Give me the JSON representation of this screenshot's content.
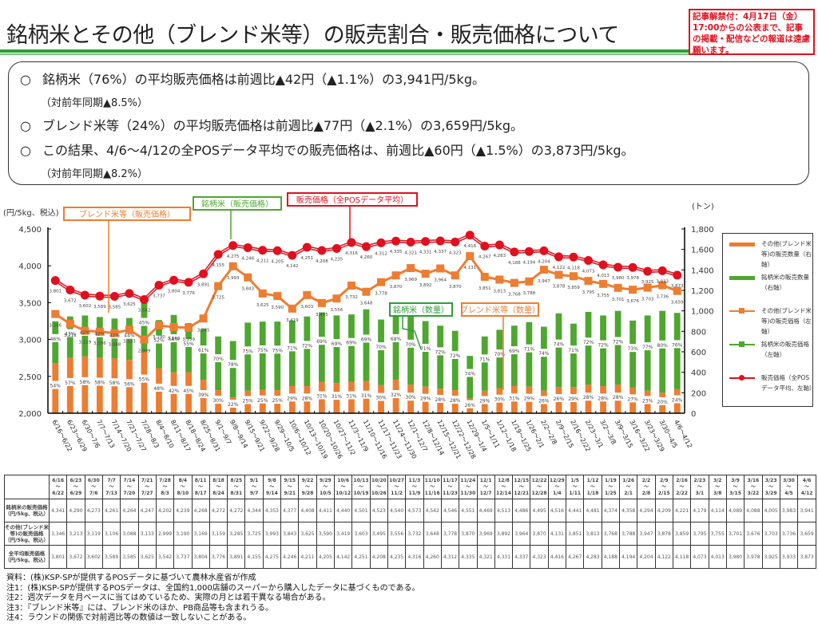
{
  "header": {
    "title": "銘柄米とその他（ブレンド米等）の販売割合・販売価格について",
    "embargo_text": "記事解禁付：4月17日（金）17:00からの公表まで、記事の掲載・配信などの報道は遠慮願います。",
    "colors": {
      "stripe_green": "#2e9e3a",
      "embargo_red": "#e0101e"
    }
  },
  "summary": {
    "bullet": "○",
    "lines": [
      {
        "text": "銘柄米（76%）の平均販売価格は前週比▲42円（▲1.1%）の3,941円/5kg。",
        "sub": "（対前年同期▲8.5%）"
      },
      {
        "text": "ブレンド米等（24%）の平均販売価格は前週比▲77円（▲2.1%）の3,659円/5kg。",
        "sub": ""
      },
      {
        "text": "この結果、4/6～4/12の全POSデータ平均での販売価格は、前週比▲60円（▲1.5%）の3,873円/5kg。",
        "sub": "（対前年同期▲8.2%）"
      }
    ]
  },
  "chart_data": {
    "type": "bar+line",
    "left_axis_label": "(円/5kg、税込)",
    "right_axis_label": "(トン)",
    "ylim_left": [
      2000,
      4500
    ],
    "yticks_left": [
      "2,000",
      "2,500",
      "3,000",
      "3,500",
      "4,000",
      "4,500"
    ],
    "ylim_right": [
      0,
      1800
    ],
    "yticks_right": [
      "0",
      "200",
      "400",
      "600",
      "800",
      "1,000",
      "1,200",
      "1,400",
      "1,600",
      "1,800"
    ],
    "categories": [
      "6/16～6/22",
      "6/23～6/29",
      "6/30～7/6",
      "7/7～7/13",
      "7/14～7/20",
      "7/21～7/27",
      "7/28～8/3",
      "8/4～8/10",
      "8/11～8/17",
      "8/18～8/24",
      "8/25～8/31",
      "9/1～9/7",
      "9/8～9/14",
      "9/15～9/21",
      "9/22～9/28",
      "9/29～10/5",
      "10/6～10/12",
      "10/13～10/19",
      "10/20～10/26",
      "10/27～11/2",
      "11/3～11/9",
      "11/10～11/16",
      "11/17～11/23",
      "11/24～11/30",
      "12/1～12/7",
      "12/8～12/14",
      "12/15～12/21",
      "12/22～12/28",
      "12/29～1/4",
      "1/5～1/11",
      "1/12～1/18",
      "1/19～1/25",
      "1/26～2/1",
      "2/2～2/8",
      "2/9～2/15",
      "2/16～2/22",
      "2/23～3/1",
      "3/2～3/8",
      "3/9～3/15",
      "3/16～3/22",
      "3/23～3/29",
      "3/30～4/5",
      "4/6～4/12"
    ],
    "table_headers_top": [
      "6/16",
      "6/23",
      "6/30",
      "7/7",
      "7/14",
      "7/21",
      "7/28",
      "8/4",
      "8/11",
      "8/18",
      "8/25",
      "9/1",
      "9/8",
      "9/15",
      "9/22",
      "9/29",
      "10/6",
      "10/13",
      "10/20",
      "10/27",
      "11/3",
      "11/10",
      "11/17",
      "11/24",
      "12/1",
      "12/8",
      "12/15",
      "12/22",
      "12/29",
      "1/5",
      "1/12",
      "1/19",
      "1/26",
      "2/2",
      "2/9",
      "2/16",
      "2/23",
      "3/2",
      "3/9",
      "3/16",
      "3/23",
      "3/30",
      "4/6"
    ],
    "table_headers_bottom": [
      "6/22",
      "6/29",
      "7/6",
      "7/13",
      "7/20",
      "7/27",
      "8/3",
      "8/10",
      "8/17",
      "8/24",
      "8/31",
      "9/7",
      "9/14",
      "9/21",
      "9/28",
      "10/5",
      "10/12",
      "10/19",
      "10/26",
      "11/2",
      "11/9",
      "11/16",
      "11/23",
      "11/30",
      "12/7",
      "12/14",
      "12/21",
      "12/28",
      "1/4",
      "1/11",
      "1/18",
      "1/25",
      "2/1",
      "2/8",
      "2/15",
      "2/22",
      "3/1",
      "3/8",
      "3/15",
      "3/22",
      "3/29",
      "4/5",
      "4/12"
    ],
    "series": [
      {
        "name": "その他(ブレンド米等)の販売数量（右軸）",
        "type": "bar",
        "axis": "right",
        "color": "#ed7d31",
        "share_labels": [
          "54%",
          "57%",
          "58%",
          "58%",
          "58%",
          "56%",
          "55%",
          "48%",
          "42%",
          "45%",
          "39%",
          "30%",
          "22%",
          "25%",
          "25%",
          "25%",
          "29%",
          "28%",
          "31%",
          "31%",
          "31%",
          "31%",
          "30%",
          "32%",
          "30%",
          "29%",
          "28%",
          "28%",
          "26%",
          "29%",
          "30%",
          "31%",
          "29%",
          "26%",
          "26%",
          "29%",
          "28%",
          "28%",
          "28%",
          "27%",
          "23%",
          "20%",
          "24%"
        ],
        "values": [
          488,
          540,
          555,
          545,
          535,
          520,
          600,
          440,
          400,
          400,
          325,
          225,
          155,
          220,
          230,
          225,
          265,
          265,
          305,
          295,
          305,
          315,
          275,
          325,
          280,
          260,
          240,
          225,
          145,
          220,
          245,
          265,
          260,
          220,
          255,
          255,
          280,
          265,
          280,
          250,
          220,
          200,
          235
        ]
      },
      {
        "name": "銘柄米の販売数量（右軸）",
        "type": "bar",
        "axis": "right",
        "color": "#4ea72e",
        "share_labels": [
          "46%",
          "43%",
          "42%",
          "42%",
          "42%",
          "44%",
          "45%",
          "52%",
          "58%",
          "55%",
          "61%",
          "70%",
          "78%",
          "75%",
          "75%",
          "75%",
          "71%",
          "72%",
          "69%",
          "69%",
          "69%",
          "69%",
          "70%",
          "68%",
          "70%",
          "71%",
          "72%",
          "72%",
          "74%",
          "71%",
          "70%",
          "69%",
          "71%",
          "74%",
          "74%",
          "71%",
          "72%",
          "72%",
          "72%",
          "73%",
          "77%",
          "80%",
          "76%"
        ],
        "values": [
          410,
          405,
          400,
          395,
          390,
          410,
          490,
          470,
          560,
          480,
          500,
          525,
          550,
          665,
          665,
          670,
          640,
          680,
          680,
          660,
          660,
          700,
          640,
          690,
          675,
          640,
          615,
          580,
          415,
          530,
          570,
          590,
          630,
          625,
          720,
          620,
          710,
          690,
          720,
          655,
          735,
          800,
          745
        ]
      },
      {
        "name": "その他(ブレンド米等)の販売価格（左軸）",
        "type": "line",
        "axis": "left",
        "color": "#ed7d31",
        "values": [
          3346,
          3213,
          3119,
          3106,
          3088,
          3133,
          2999,
          3190,
          3169,
          3159,
          3285,
          3725,
          3993,
          3843,
          3625,
          3590,
          3419,
          3603,
          3495,
          3556,
          3732,
          3648,
          3778,
          3870,
          3969,
          3892,
          3964,
          3870,
          4131,
          3851,
          3813,
          3768,
          3788,
          3947,
          3878,
          3859,
          3795,
          3755,
          3701,
          3676,
          3703,
          3736,
          3659
        ],
        "labels": [
          "3,346",
          "3,213",
          "3,119",
          "3,106",
          "3,088",
          "3,133",
          "2,999",
          "3,190",
          "3,169",
          "3,159",
          "3,285",
          "3,725",
          "3,993",
          "3,843",
          "3,625",
          "3,590",
          "3,419",
          "3,603",
          "3,495",
          "3,556",
          "3,732",
          "3,648",
          "3,778",
          "3,870",
          "3,969",
          "3,892",
          "3,964",
          "3,870",
          "4,131",
          "3,851",
          "3,813",
          "3,768",
          "3,788",
          "3,947",
          "3,878",
          "3,859",
          "3,795",
          "3,755",
          "3,701",
          "3,676",
          "3,703",
          "3,736",
          "3,659"
        ]
      },
      {
        "name": "銘柄米の販売価格（左軸）",
        "type": "line",
        "axis": "left",
        "color": "#4ea72e",
        "values": [
          4341,
          4290,
          4273,
          4261,
          4264,
          4247,
          4202,
          4239,
          4268,
          4272,
          4272,
          4344,
          4353,
          4377,
          4408,
          4411,
          4440,
          4501,
          4523,
          4540,
          4573,
          4542,
          4546,
          4551,
          4469,
          4513,
          4486,
          4495,
          4516,
          4441,
          4481,
          4374,
          4358,
          4294,
          4209,
          4221,
          4179,
          4114,
          4089,
          4088,
          4005,
          3983,
          3941
        ],
        "labels": [
          "4,341",
          "4,290",
          "4,273",
          "4,261",
          "4,264",
          "4,247",
          "4,202",
          "4,239",
          "4,268",
          "4,272",
          "4,272",
          "4,344",
          "4,353",
          "4,377",
          "4,408",
          "4,411",
          "4,440",
          "4,501",
          "4,523",
          "4,540",
          "4,573",
          "4,542",
          "4,546",
          "4,551",
          "4,469",
          "4,513",
          "4,486",
          "4,495",
          "4,516",
          "4,441",
          "4,481",
          "4,374",
          "4,358",
          "4,294",
          "4,209",
          "4,221",
          "4,179",
          "4,114",
          "4,089",
          "4,088",
          "4,005",
          "3,983",
          "3,941"
        ]
      },
      {
        "name": "販売価格（全POSデータ平均、左軸）",
        "type": "line",
        "axis": "left",
        "color": "#e0101e",
        "values": [
          3801,
          3672,
          3602,
          3589,
          3585,
          3625,
          3542,
          3737,
          3804,
          3776,
          3891,
          4155,
          4275,
          4246,
          4211,
          4205,
          4142,
          4251,
          4208,
          4235,
          4316,
          4260,
          4312,
          4335,
          4321,
          4331,
          4337,
          4323,
          4416,
          4267,
          4283,
          4188,
          4194,
          4204,
          4122,
          4118,
          4073,
          4013,
          3980,
          3978,
          3925,
          3933,
          3873
        ],
        "labels": [
          "3,801",
          "3,672",
          "3,602",
          "3,589",
          "3,585",
          "3,625",
          "3,542",
          "3,737",
          "3,804",
          "3,776",
          "3,891",
          "4,155",
          "4,275",
          "4,246",
          "4,211",
          "4,205",
          "4,142",
          "4,251",
          "4,208",
          "4,235",
          "4,316",
          "4,260",
          "4,312",
          "4,335",
          "4,321",
          "4,331",
          "4,337",
          "4,323",
          "4,416",
          "4,267",
          "4,283",
          "4,188",
          "4,194",
          "4,204",
          "4,122",
          "4,118",
          "4,073",
          "4,013",
          "3,980",
          "3,978",
          "3,925",
          "3,933",
          "3,873"
        ]
      }
    ],
    "callouts": [
      {
        "text": "ブレンド米等（販売価格）",
        "color": "#ed7d31"
      },
      {
        "text": "銘柄米（販売価格）",
        "color": "#4ea72e"
      },
      {
        "text": "販売価格（全POSデータ平均）",
        "color": "#e0101e"
      },
      {
        "text": "銘柄米（数量）",
        "color": "#2e9e3a"
      },
      {
        "text": "ブレンド米等（数量）",
        "color": "#ed7d31"
      }
    ],
    "legend": {
      "position": "right",
      "items": [
        {
          "text": "その他(ブレンド米等)の販売数量（右軸）",
          "kind": "bar",
          "color": "#ed7d31"
        },
        {
          "text": "銘柄米の販売数量（右軸）",
          "kind": "bar",
          "color": "#4ea72e"
        },
        {
          "text": "その他(ブレンド米等)の販売価格（左軸）",
          "kind": "line-square",
          "color": "#ed7d31"
        },
        {
          "text": "銘柄米の販売価格（左軸）",
          "kind": "line-square",
          "color": "#4ea72e"
        },
        {
          "text": "販売価格（全POSデータ平均、左軸）",
          "kind": "line-circle",
          "color": "#e0101e"
        }
      ]
    }
  },
  "table": {
    "row_labels": [
      "銘柄米の販売価格（円/5kg、税込）",
      "その他(ブレンド米等)の販売価格（円/5kg、税込）",
      "全平均販売価格（円/5kg、税込）"
    ]
  },
  "notes": [
    "資料：(株)KSP-SPが提供するPOSデータに基づいて農林水産省が作成",
    "注1：(株)KSP-SPが提供するPOSデータは、全国約1,000店舗のスーパーから購入したデータに基づくものである。",
    "注2：週次データを月ベースに当てはめているため、実際の月とは若干異なる場合がある。",
    "注3：『ブレンド米等』には、ブレンド米のほか、PB商品等も含まれうる。",
    "注4：ラウンドの関係で対前週比等の数値は一致しないことがある。"
  ]
}
